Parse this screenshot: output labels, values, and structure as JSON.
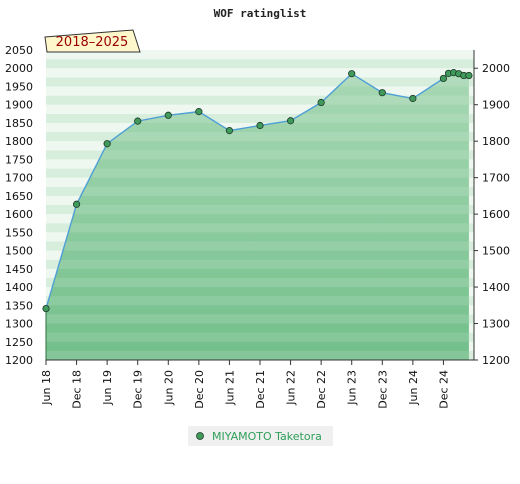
{
  "chart_data": {
    "type": "area",
    "title": "WOF ratinglist",
    "period_label": "2018–2025",
    "ylim": [
      1200,
      2050
    ],
    "y_ticks_left": [
      1200,
      1250,
      1300,
      1350,
      1400,
      1450,
      1500,
      1550,
      1600,
      1650,
      1700,
      1750,
      1800,
      1850,
      1900,
      1950,
      2000,
      2050
    ],
    "y_ticks_right": [
      1200,
      1300,
      1400,
      1500,
      1600,
      1700,
      1800,
      1900,
      2000
    ],
    "x_ticks": [
      "Jun 18",
      "Dec 18",
      "Jun 19",
      "Dec 19",
      "Jun 20",
      "Dec 20",
      "Jun 21",
      "Dec 21",
      "Jun 22",
      "Dec 22",
      "Jun 23",
      "Dec 23",
      "Jun 24",
      "Dec 24"
    ],
    "x_tick_months": [
      0,
      6,
      12,
      18,
      24,
      30,
      36,
      42,
      48,
      54,
      60,
      66,
      72,
      78
    ],
    "x_range_months": [
      0,
      84
    ],
    "series": [
      {
        "name": "MIYAMOTO Taketora",
        "x_months": [
          0,
          6,
          12,
          18,
          24,
          30,
          36,
          42,
          48,
          54,
          60,
          66,
          72,
          78,
          79,
          80,
          81,
          82,
          83
        ],
        "values": [
          1341,
          1627,
          1793,
          1855,
          1871,
          1881,
          1829,
          1843,
          1856,
          1906,
          1985,
          1933,
          1917,
          1972,
          1986,
          1988,
          1985,
          1980,
          1980
        ]
      }
    ],
    "colors": {
      "line": "#4f9fd6",
      "marker_fill": "#3f9a5c",
      "marker_stroke": "#1f3a28",
      "fill_top": "#a8d8b4",
      "fill_bottom": "#72bf8a",
      "band_light": "#eef8f0",
      "band_mid": "#d6eedb"
    },
    "grid": true,
    "legend_position": "bottom-center"
  }
}
